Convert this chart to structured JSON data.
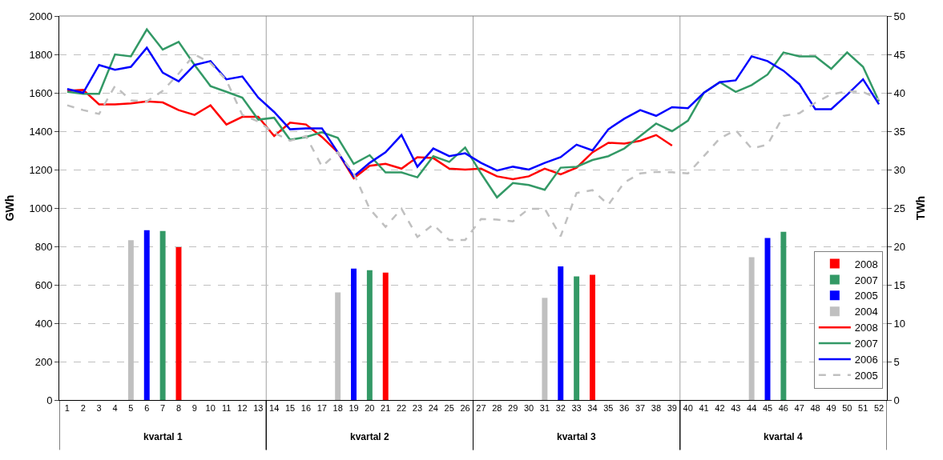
{
  "chart_data": {
    "type": "line",
    "x": [
      1,
      2,
      3,
      4,
      5,
      6,
      7,
      8,
      9,
      10,
      11,
      12,
      13,
      14,
      15,
      16,
      17,
      18,
      19,
      20,
      21,
      22,
      23,
      24,
      25,
      26,
      27,
      28,
      29,
      30,
      31,
      32,
      33,
      34,
      35,
      36,
      37,
      38,
      39,
      40,
      41,
      42,
      43,
      44,
      45,
      46,
      47,
      48,
      49,
      50,
      51,
      52
    ],
    "xlim": [
      0.5,
      52.5
    ],
    "xticks": [
      1,
      2,
      3,
      4,
      5,
      6,
      7,
      8,
      9,
      10,
      11,
      12,
      13,
      14,
      15,
      16,
      17,
      18,
      19,
      20,
      21,
      22,
      23,
      24,
      25,
      26,
      27,
      28,
      29,
      30,
      31,
      32,
      33,
      34,
      35,
      36,
      37,
      38,
      39,
      40,
      41,
      42,
      43,
      44,
      45,
      46,
      47,
      48,
      49,
      50,
      51,
      52
    ],
    "ylim": [
      0,
      2000
    ],
    "yticks": [
      0,
      200,
      400,
      600,
      800,
      1000,
      1200,
      1400,
      1600,
      1800,
      2000
    ],
    "y2lim": [
      0,
      50
    ],
    "y2ticks": [
      0,
      5,
      10,
      15,
      20,
      25,
      30,
      35,
      40,
      45,
      50
    ],
    "ylabel": "GWh",
    "y2label": "TWh",
    "grid": "y",
    "legend": "bottom right",
    "ref_lines": [
      {
        "axis": "x",
        "value": 13.5,
        "color": "#a0a0a0"
      },
      {
        "axis": "x",
        "value": 26.5,
        "color": "#a0a0a0"
      },
      {
        "axis": "x",
        "value": 39.5,
        "color": "#a0a0a0"
      }
    ],
    "annotations": [
      "kvartal 1",
      "kvartal 2",
      "kvartal 3",
      "kvartal 4"
    ],
    "series": [
      {
        "name": "2008",
        "type": "bar",
        "axis": "y2",
        "color": "#ff0000",
        "x": [
          8,
          21,
          34
        ],
        "values": [
          19.9,
          16.6,
          16.3
        ]
      },
      {
        "name": "2007",
        "type": "bar",
        "axis": "y2",
        "color": "#339966",
        "x": [
          7,
          20,
          33,
          46
        ],
        "values": [
          22.0,
          16.9,
          16.1,
          21.9
        ]
      },
      {
        "name": "2005",
        "type": "bar",
        "axis": "y2",
        "color": "#0000ff",
        "x": [
          6,
          19,
          32,
          45
        ],
        "values": [
          22.1,
          17.1,
          17.4,
          21.1
        ]
      },
      {
        "name": "2004",
        "type": "bar",
        "axis": "y2",
        "color": "#c0c0c0",
        "x": [
          5,
          18,
          31,
          44
        ],
        "values": [
          20.8,
          14.0,
          13.3,
          18.6
        ]
      },
      {
        "name": "2008",
        "color": "#ff0000",
        "line_style": "solid",
        "values": [
          1610,
          1615,
          1540,
          1540,
          1545,
          1555,
          1550,
          1510,
          1485,
          1535,
          1435,
          1475,
          1475,
          1375,
          1445,
          1435,
          1370,
          1290,
          1155,
          1220,
          1230,
          1205,
          1265,
          1260,
          1205,
          1200,
          1205,
          1165,
          1150,
          1165,
          1205,
          1175,
          1210,
          1290,
          1340,
          1335,
          1350,
          1380,
          1325,
          null,
          null,
          null,
          null,
          null,
          null,
          null,
          null,
          null,
          null,
          null,
          null,
          null
        ]
      },
      {
        "name": "2007",
        "color": "#339966",
        "line_style": "solid",
        "values": [
          1605,
          1595,
          1595,
          1800,
          1790,
          1930,
          1825,
          1865,
          1745,
          1635,
          1605,
          1575,
          1460,
          1470,
          1355,
          1370,
          1395,
          1365,
          1230,
          1275,
          1185,
          1185,
          1160,
          1270,
          1240,
          1315,
          1180,
          1055,
          1130,
          1120,
          1095,
          1210,
          1215,
          1250,
          1270,
          1310,
          1375,
          1440,
          1400,
          1455,
          1600,
          1655,
          1605,
          1640,
          1695,
          1810,
          1790,
          1790,
          1725,
          1810,
          1735,
          1555
        ]
      },
      {
        "name": "2006",
        "color": "#0000ff",
        "line_style": "solid",
        "values": [
          1620,
          1600,
          1745,
          1720,
          1735,
          1835,
          1705,
          1660,
          1745,
          1765,
          1670,
          1685,
          1575,
          1500,
          1410,
          1415,
          1415,
          1290,
          1165,
          1235,
          1290,
          1380,
          1215,
          1310,
          1270,
          1285,
          1235,
          1195,
          1215,
          1200,
          1235,
          1265,
          1330,
          1300,
          1410,
          1465,
          1510,
          1480,
          1525,
          1520,
          1600,
          1655,
          1665,
          1790,
          1765,
          1715,
          1645,
          1515,
          1515,
          1590,
          1670,
          1540
        ]
      },
      {
        "name": "2005",
        "color": "#c0c0c0",
        "line_style": "dashed",
        "values": [
          1535,
          1510,
          1490,
          1636,
          1560,
          1555,
          1610,
          1700,
          1800,
          1755,
          1665,
          1485,
          1450,
          1391,
          1350,
          1375,
          1216,
          1290,
          1180,
          996,
          902,
          996,
          849,
          914,
          833,
          833,
          943,
          940,
          930,
          996,
          996,
          853,
          1078,
          1093,
          1017,
          1133,
          1180,
          1188,
          1186,
          1180,
          1270,
          1363,
          1405,
          1310,
          1330,
          1480,
          1494,
          1548,
          1592,
          1608,
          1605,
          1567
        ]
      }
    ]
  }
}
